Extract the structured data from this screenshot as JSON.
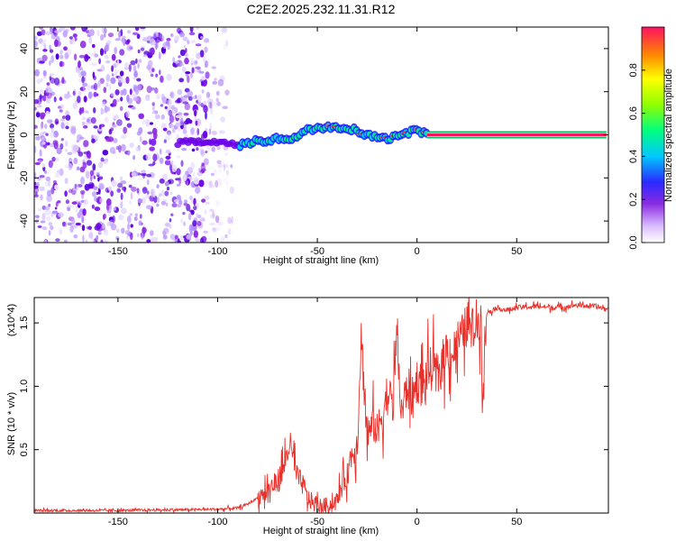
{
  "title": "C2E2.2025.232.11.31.R12",
  "chart_data": [
    {
      "type": "heatmap",
      "title": "C2E2.2025.232.11.31.R12",
      "xlabel": "Height of straight line (km)",
      "ylabel": "Frequency (Hz)",
      "xlim": [
        -192,
        96
      ],
      "ylim": [
        -50,
        50
      ],
      "xticks": [
        -150,
        -100,
        -50,
        0,
        50
      ],
      "yticks": [
        -40,
        -20,
        0,
        20,
        40
      ],
      "noise_region_x": [
        -192,
        -92
      ],
      "signal_ridge": {
        "x": [
          -120,
          -110,
          -100,
          -90,
          -80,
          -70,
          -60,
          -55,
          -50,
          -45,
          -40,
          -35,
          -30,
          -25,
          -20,
          -15,
          -10,
          -5,
          0,
          5,
          95
        ],
        "frequency": [
          -4,
          -3,
          -3,
          -5,
          -3,
          -2,
          -1,
          2,
          3,
          4,
          4,
          3,
          2,
          0,
          -1,
          -2,
          0,
          1,
          2,
          0,
          0
        ]
      },
      "colorbar": {
        "label": "Normalized spectral amplitude",
        "range": [
          0.0,
          1.0
        ],
        "ticks": [
          "0.0",
          "0.2",
          "0.4",
          "0.6",
          "0.8"
        ]
      }
    },
    {
      "type": "line",
      "xlabel": "Height of straight line (km)",
      "ylabel": "SNR (10 * v/v)",
      "multiplier": "(x10^4)",
      "xlim": [
        -192,
        96
      ],
      "ylim": [
        0,
        1.7
      ],
      "xticks": [
        -150,
        -100,
        -50,
        0,
        50
      ],
      "yticks": [
        0.5,
        1.0,
        1.5
      ],
      "line_color": "#e8302a",
      "series": [
        {
          "name": "SNR",
          "x": [
            -192,
            -150,
            -100,
            -90,
            -85,
            -80,
            -75,
            -70,
            -67,
            -64,
            -60,
            -57,
            -55,
            -52,
            -50,
            -48,
            -45,
            -42,
            -40,
            -38,
            -35,
            -33,
            -30,
            -28,
            -25,
            -22,
            -20,
            -17,
            -15,
            -12,
            -10,
            -8,
            -5,
            -2,
            0,
            3,
            5,
            8,
            10,
            13,
            15,
            18,
            20,
            23,
            25,
            28,
            30,
            32,
            33,
            35,
            40,
            45,
            50,
            60,
            70,
            80,
            90,
            96
          ],
          "values": [
            0.02,
            0.02,
            0.03,
            0.04,
            0.07,
            0.12,
            0.18,
            0.25,
            0.35,
            0.55,
            0.28,
            0.22,
            0.12,
            0.08,
            0.06,
            0.05,
            0.06,
            0.07,
            0.1,
            0.2,
            0.3,
            0.45,
            0.55,
            1.4,
            0.6,
            0.7,
            0.65,
            0.8,
            0.95,
            0.85,
            1.45,
            0.75,
            1.0,
            0.9,
            1.05,
            1.0,
            1.1,
            1.15,
            1.05,
            1.2,
            1.3,
            1.25,
            1.35,
            1.4,
            1.5,
            1.45,
            1.52,
            1.55,
            1.08,
            1.58,
            1.62,
            1.6,
            1.62,
            1.63,
            1.62,
            1.64,
            1.63,
            1.6
          ]
        }
      ]
    }
  ]
}
